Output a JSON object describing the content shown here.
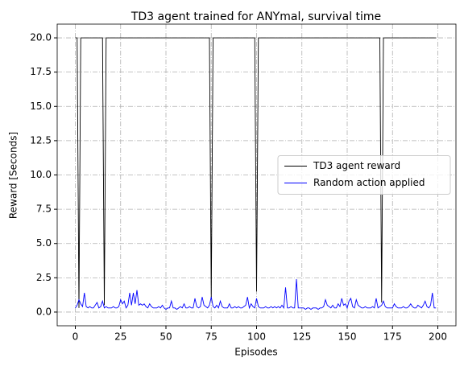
{
  "chart_data": {
    "type": "line",
    "title": "TD3 agent trained for ANYmal, survival time",
    "xlabel": "Episodes",
    "ylabel": "Reward [Seconds]",
    "x": [
      0,
      1,
      2,
      3,
      4,
      5,
      6,
      7,
      8,
      9,
      10,
      11,
      12,
      13,
      14,
      15,
      16,
      17,
      18,
      19,
      20,
      21,
      22,
      23,
      24,
      25,
      26,
      27,
      28,
      29,
      30,
      31,
      32,
      33,
      34,
      35,
      36,
      37,
      38,
      39,
      40,
      41,
      42,
      43,
      44,
      45,
      46,
      47,
      48,
      49,
      50,
      51,
      52,
      53,
      54,
      55,
      56,
      57,
      58,
      59,
      60,
      61,
      62,
      63,
      64,
      65,
      66,
      67,
      68,
      69,
      70,
      71,
      72,
      73,
      74,
      75,
      76,
      77,
      78,
      79,
      80,
      81,
      82,
      83,
      84,
      85,
      86,
      87,
      88,
      89,
      90,
      91,
      92,
      93,
      94,
      95,
      96,
      97,
      98,
      99,
      100,
      101,
      102,
      103,
      104,
      105,
      106,
      107,
      108,
      109,
      110,
      111,
      112,
      113,
      114,
      115,
      116,
      117,
      118,
      119,
      120,
      121,
      122,
      123,
      124,
      125,
      126,
      127,
      128,
      129,
      130,
      131,
      132,
      133,
      134,
      135,
      136,
      137,
      138,
      139,
      140,
      141,
      142,
      143,
      144,
      145,
      146,
      147,
      148,
      149,
      150,
      151,
      152,
      153,
      154,
      155,
      156,
      157,
      158,
      159,
      160,
      161,
      162,
      163,
      164,
      165,
      166,
      167,
      168,
      169,
      170,
      171,
      172,
      173,
      174,
      175,
      176,
      177,
      178,
      179,
      180,
      181,
      182,
      183,
      184,
      185,
      186,
      187,
      188,
      189,
      190,
      191,
      192,
      193,
      194,
      195,
      196,
      197,
      198,
      199
    ],
    "series": [
      {
        "name": "TD3 agent reward",
        "color": "#000000",
        "values": [
          20,
          20,
          0.3,
          20,
          20,
          20,
          20,
          20,
          20,
          20,
          20,
          20,
          20,
          20,
          20,
          20,
          0.5,
          20,
          20,
          20,
          20,
          20,
          20,
          20,
          20,
          20,
          20,
          20,
          20,
          20,
          20,
          20,
          20,
          20,
          20,
          20,
          20,
          20,
          20,
          20,
          20,
          20,
          20,
          20,
          20,
          20,
          20,
          20,
          20,
          20,
          20,
          20,
          20,
          20,
          20,
          20,
          20,
          20,
          20,
          20,
          20,
          20,
          20,
          20,
          20,
          20,
          20,
          20,
          20,
          20,
          20,
          20,
          20,
          20,
          20,
          1.0,
          20,
          20,
          20,
          20,
          20,
          20,
          20,
          20,
          20,
          20,
          20,
          20,
          20,
          20,
          20,
          20,
          20,
          20,
          20,
          20,
          20,
          20,
          20,
          20,
          1.5,
          20,
          20,
          20,
          20,
          20,
          20,
          20,
          20,
          20,
          20,
          20,
          20,
          20,
          20,
          20,
          20,
          20,
          20,
          20,
          20,
          20,
          20,
          20,
          20,
          20,
          20,
          20,
          20,
          20,
          20,
          20,
          20,
          20,
          20,
          20,
          20,
          20,
          20,
          20,
          20,
          20,
          20,
          20,
          20,
          20,
          20,
          20,
          20,
          20,
          20,
          20,
          20,
          20,
          20,
          20,
          20,
          20,
          20,
          20,
          20,
          20,
          20,
          20,
          20,
          20,
          20,
          20,
          20,
          0.7,
          20,
          20,
          20,
          20,
          20,
          20,
          20,
          20,
          20,
          20,
          20,
          20,
          20,
          20,
          20,
          20,
          20,
          20,
          20,
          20,
          20,
          20,
          20,
          20,
          20,
          20,
          20,
          20,
          20,
          20
        ]
      },
      {
        "name": "Random action applied",
        "color": "#0000ff",
        "values": [
          0.3,
          0.5,
          0.9,
          0.6,
          0.4,
          1.4,
          0.4,
          0.3,
          0.4,
          0.3,
          0.3,
          0.5,
          0.7,
          0.3,
          0.4,
          0.8,
          0.3,
          0.4,
          0.3,
          0.3,
          0.3,
          0.4,
          0.3,
          0.3,
          0.4,
          0.9,
          0.6,
          0.8,
          0.3,
          0.5,
          1.4,
          0.5,
          1.4,
          0.6,
          1.6,
          0.5,
          0.6,
          0.5,
          0.6,
          0.4,
          0.3,
          0.6,
          0.4,
          0.3,
          0.3,
          0.3,
          0.4,
          0.3,
          0.5,
          0.3,
          0.2,
          0.3,
          0.3,
          0.8,
          0.3,
          0.3,
          0.2,
          0.3,
          0.4,
          0.3,
          0.6,
          0.3,
          0.3,
          0.4,
          0.3,
          0.3,
          1.0,
          0.4,
          0.3,
          0.4,
          1.1,
          0.5,
          0.4,
          0.3,
          0.5,
          1.1,
          0.4,
          0.3,
          0.5,
          0.3,
          0.8,
          0.4,
          0.3,
          0.3,
          0.3,
          0.6,
          0.3,
          0.3,
          0.4,
          0.3,
          0.4,
          0.3,
          0.3,
          0.4,
          0.5,
          1.1,
          0.3,
          0.6,
          0.4,
          0.3,
          1.0,
          0.4,
          0.3,
          0.3,
          0.3,
          0.4,
          0.3,
          0.3,
          0.4,
          0.3,
          0.4,
          0.3,
          0.4,
          0.3,
          0.5,
          0.3,
          1.8,
          0.3,
          0.3,
          0.4,
          0.3,
          0.3,
          2.4,
          0.3,
          0.3,
          0.3,
          0.3,
          0.2,
          0.3,
          0.3,
          0.2,
          0.3,
          0.3,
          0.3,
          0.2,
          0.3,
          0.3,
          0.4,
          0.9,
          0.5,
          0.4,
          0.3,
          0.5,
          0.3,
          0.3,
          0.6,
          0.4,
          1.0,
          0.5,
          0.6,
          0.3,
          0.8,
          1.0,
          0.4,
          0.3,
          0.9,
          0.5,
          0.4,
          0.3,
          0.3,
          0.4,
          0.3,
          0.3,
          0.3,
          0.4,
          0.3,
          1.0,
          0.3,
          0.4,
          0.5,
          0.8,
          0.4,
          0.3,
          0.3,
          0.3,
          0.3,
          0.6,
          0.4,
          0.3,
          0.3,
          0.3,
          0.4,
          0.3,
          0.3,
          0.4,
          0.6,
          0.4,
          0.3,
          0.3,
          0.5,
          0.4,
          0.3,
          0.5,
          0.8,
          0.4,
          0.3,
          0.5,
          1.4,
          0.3,
          0.3
        ]
      }
    ],
    "xlim": [
      -10,
      210
    ],
    "xticks": [
      0,
      25,
      50,
      75,
      100,
      125,
      150,
      175,
      200
    ],
    "ylim": [
      -1,
      21
    ],
    "yticks": [
      {
        "value": 0,
        "label": "0.0"
      },
      2.5,
      {
        "value": 5,
        "label": "5.0"
      },
      7.5,
      {
        "value": 10,
        "label": "10.0"
      },
      12.5,
      {
        "value": 15,
        "label": "15.0"
      },
      17.5,
      {
        "value": 20,
        "label": "20.0"
      }
    ],
    "grid": true,
    "legend": "center right"
  }
}
